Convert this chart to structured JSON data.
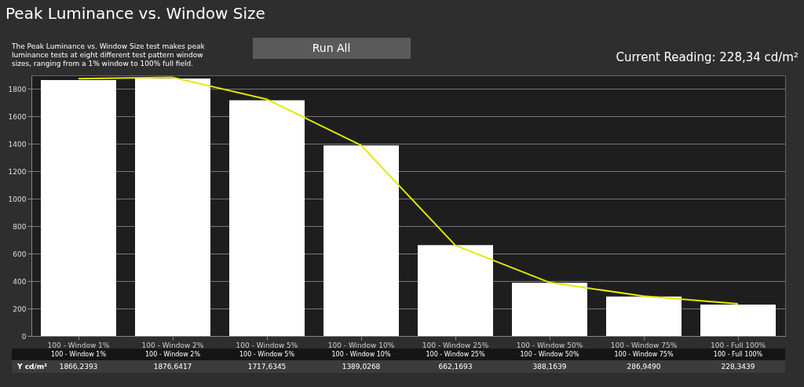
{
  "chart_data": {
    "type": "bar",
    "title": "Peak Luminance vs. Window Size",
    "subtitle": "The Peak Luminance vs. Window Size test makes peak luminance tests at eight different test pattern window sizes, ranging from a 1% window to 100% full field.",
    "categories": [
      "100 - Window  1%",
      "100 - Window  2%",
      "100 - Window  5%",
      "100 - Window 10%",
      "100 - Window 25%",
      "100 - Window 50%",
      "100 - Window 75%",
      "100 - Full  100%"
    ],
    "series": [
      {
        "color": "#ffffff",
        "values": [
          1866.2393,
          1876.6417,
          1717.6345,
          1389.0268,
          662.1693,
          388.1639,
          286.949,
          228.3439
        ],
        "value_labels": [
          "1866,2393",
          "1876,6417",
          "1717,6345",
          "1389,0268",
          "662,1693",
          "388,1639",
          "286,9490",
          "228,3439"
        ]
      },
      {
        "type": "line",
        "color": "#e6e600",
        "values": [
          1875,
          1885,
          1725,
          1390,
          660,
          390,
          290,
          235
        ]
      }
    ],
    "ylim": [
      0,
      1900
    ],
    "yticks": [
      0,
      200,
      400,
      600,
      800,
      1000,
      1200,
      1400,
      1600,
      1800
    ],
    "grid": "y",
    "annotations": [
      "Run All",
      "Current Reading: 228,34 cd/m²",
      "Y cd/m²"
    ]
  }
}
